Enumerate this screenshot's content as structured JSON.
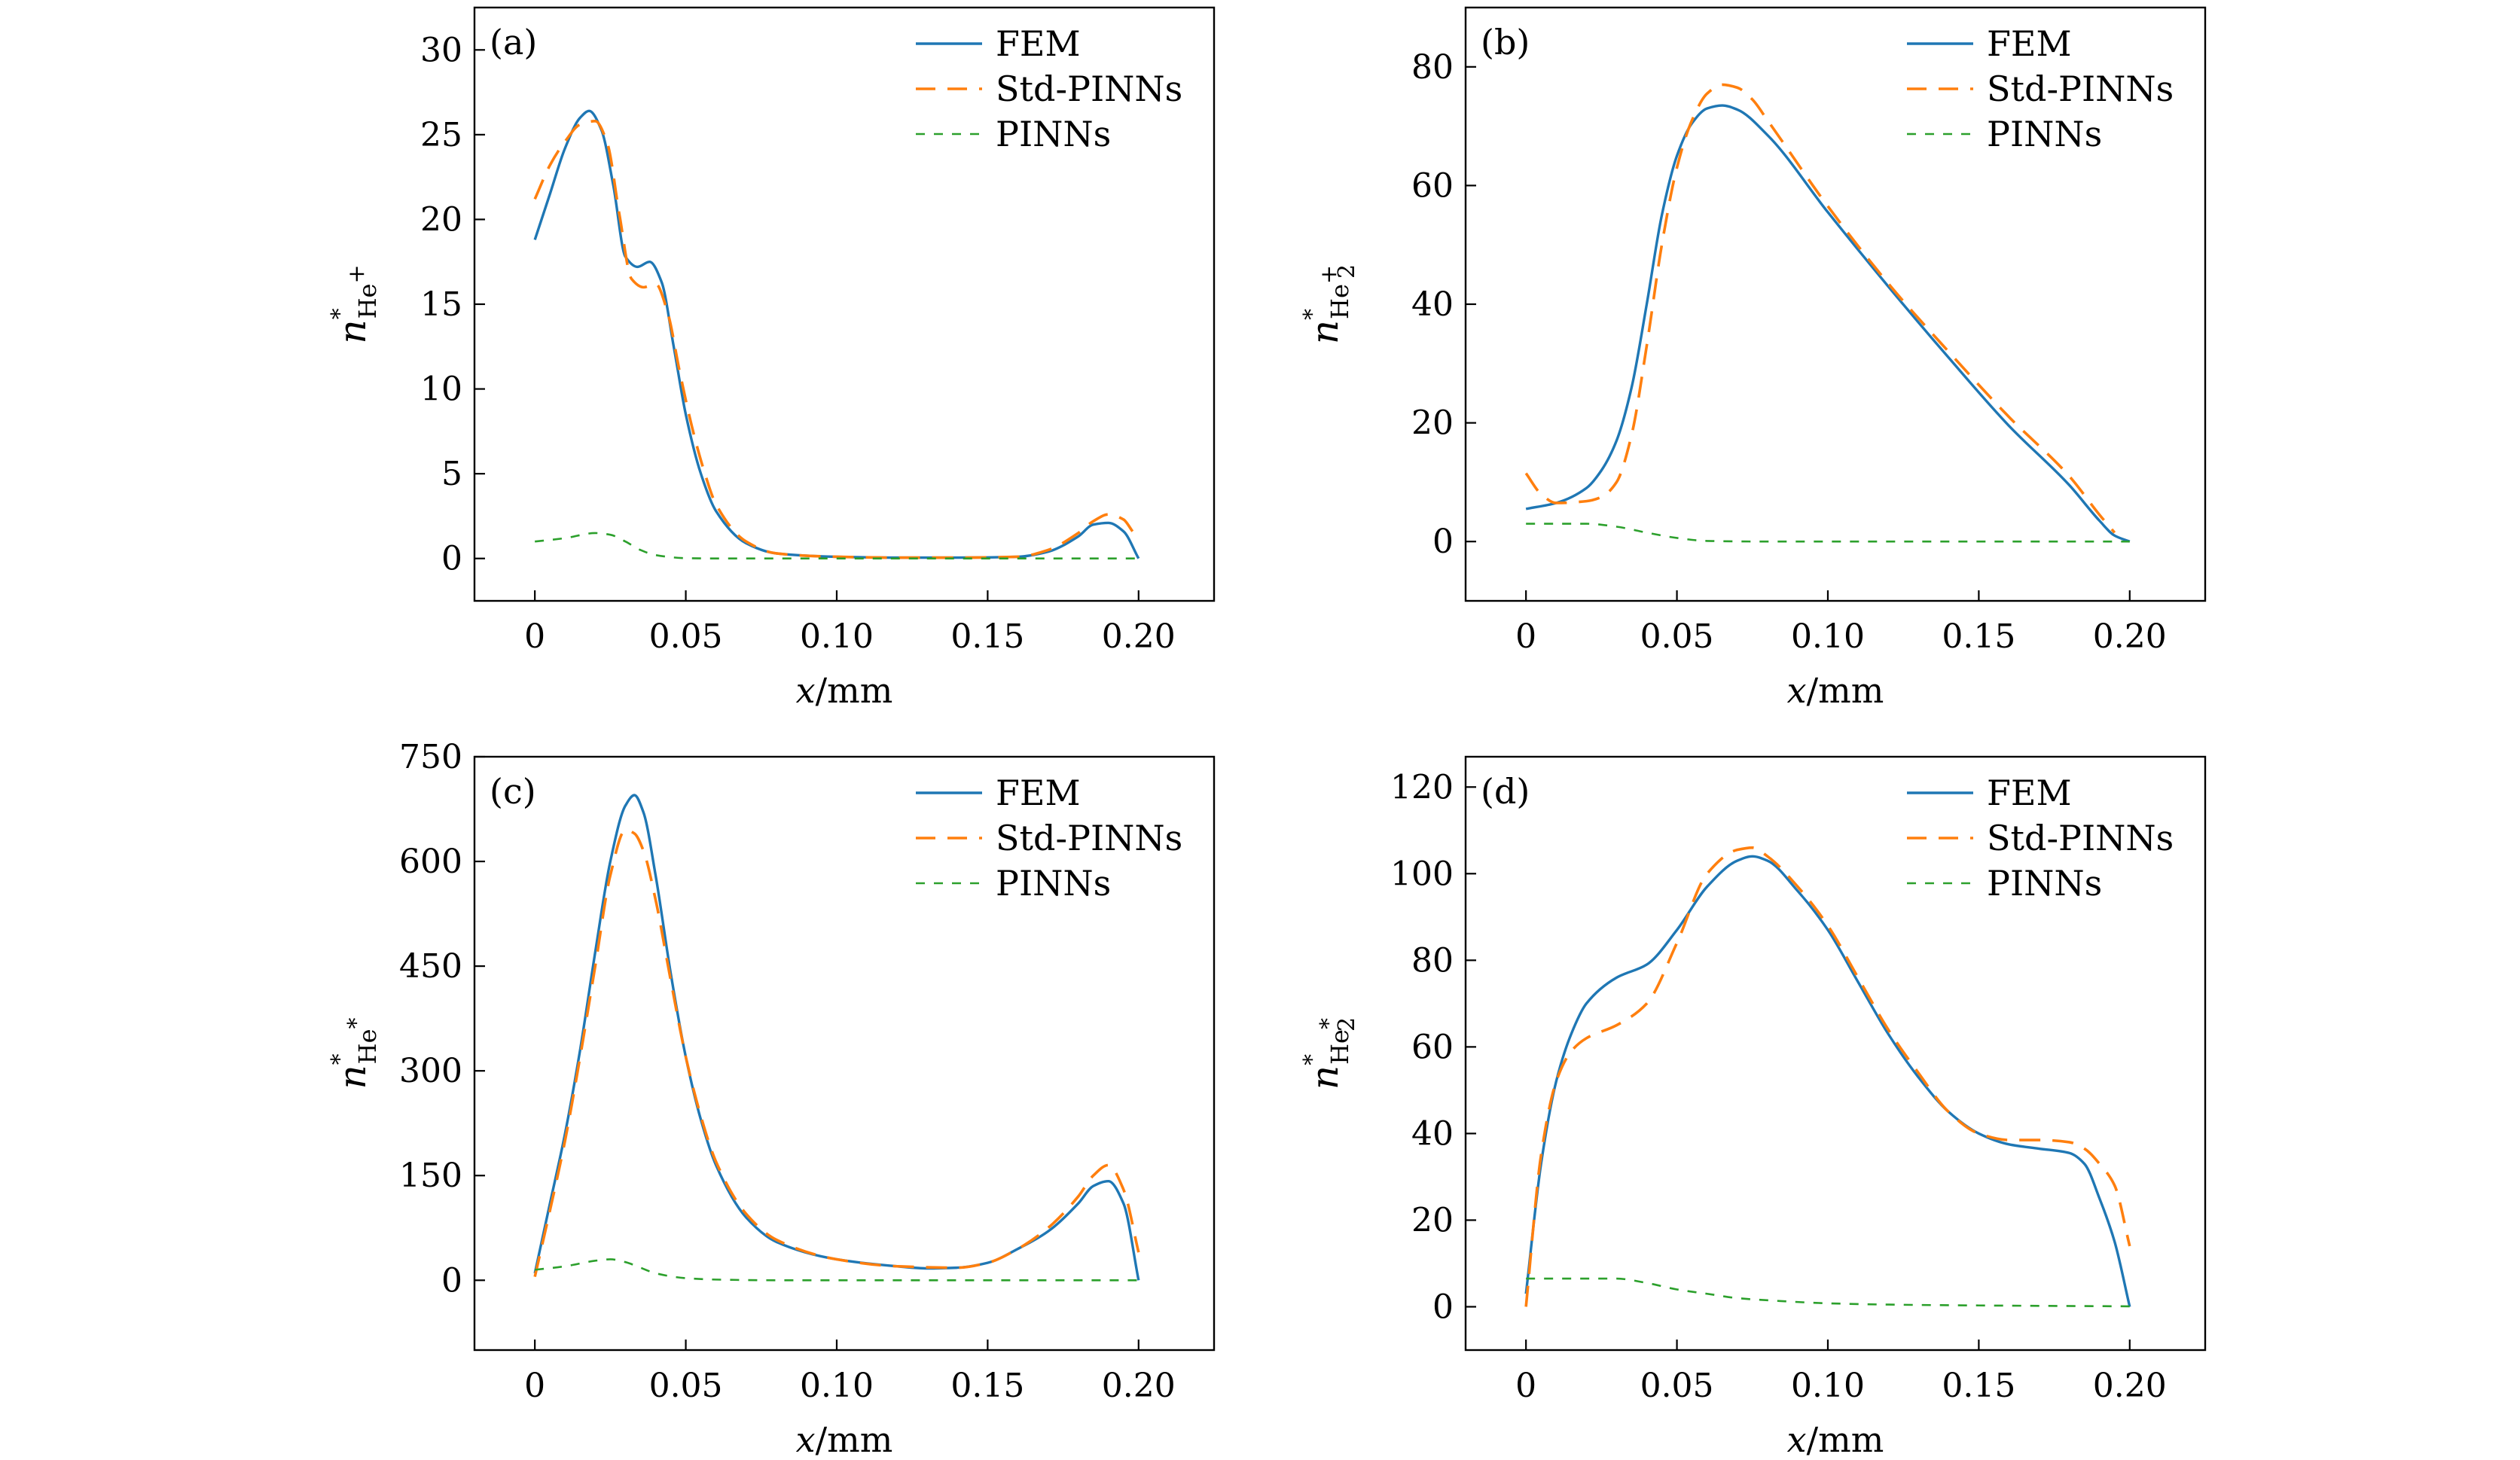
{
  "chart_data": [
    {
      "type": "line",
      "panel_label": "(a)",
      "xlabel": {
        "var": "x",
        "unit": "/mm"
      },
      "ylabel": {
        "main": "n",
        "sup": "*",
        "sub": "He",
        "subsup": "+",
        "subsub": ""
      },
      "xlim": [
        -0.02,
        0.225
      ],
      "ylim": [
        -2.5,
        32.5
      ],
      "xticks": [
        0,
        0.05,
        0.1,
        0.15,
        0.2
      ],
      "xtick_labels": [
        "0",
        "0.05",
        "0.10",
        "0.15",
        "0.20"
      ],
      "yticks": [
        0,
        5,
        10,
        15,
        20,
        25,
        30
      ],
      "ytick_labels": [
        "0",
        "5",
        "10",
        "15",
        "20",
        "25",
        "30"
      ],
      "legend": [
        "FEM",
        "Std-PINNs",
        "PINNs"
      ],
      "legend_position": "top-right",
      "series": [
        {
          "name": "FEM",
          "x": [
            0,
            0.005,
            0.01,
            0.015,
            0.018,
            0.022,
            0.026,
            0.03,
            0.034,
            0.038,
            0.042,
            0.046,
            0.05,
            0.055,
            0.06,
            0.07,
            0.08,
            0.1,
            0.12,
            0.14,
            0.16,
            0.17,
            0.18,
            0.185,
            0.19,
            0.195,
            0.2
          ],
          "values": [
            18.8,
            21.5,
            24.2,
            26.0,
            26.4,
            25.3,
            22.0,
            17.8,
            17.2,
            17.5,
            16.3,
            12.5,
            8.5,
            5.0,
            2.8,
            0.9,
            0.3,
            0.1,
            0.05,
            0.05,
            0.1,
            0.4,
            1.3,
            2.0,
            2.1,
            1.6,
            0.0
          ]
        },
        {
          "name": "Std-PINNs",
          "x": [
            0,
            0.005,
            0.01,
            0.015,
            0.02,
            0.024,
            0.028,
            0.032,
            0.036,
            0.04,
            0.044,
            0.048,
            0.052,
            0.056,
            0.06,
            0.07,
            0.08,
            0.1,
            0.12,
            0.14,
            0.16,
            0.17,
            0.18,
            0.185,
            0.19,
            0.195,
            0.198
          ],
          "values": [
            21.2,
            23.2,
            24.6,
            25.6,
            25.8,
            24.5,
            20.3,
            16.5,
            16.0,
            16.2,
            14.5,
            11.0,
            7.8,
            5.2,
            3.2,
            1.0,
            0.3,
            0.1,
            0.05,
            0.05,
            0.1,
            0.5,
            1.5,
            2.2,
            2.6,
            2.3,
            1.6
          ]
        },
        {
          "name": "PINNs",
          "x": [
            0,
            0.01,
            0.02,
            0.025,
            0.03,
            0.035,
            0.04,
            0.05,
            0.06,
            0.1,
            0.15,
            0.2
          ],
          "values": [
            1.0,
            1.2,
            1.5,
            1.4,
            1.0,
            0.5,
            0.2,
            0.02,
            0.0,
            0.0,
            0.0,
            0.0
          ]
        }
      ]
    },
    {
      "type": "line",
      "panel_label": "(b)",
      "xlabel": {
        "var": "x",
        "unit": "/mm"
      },
      "ylabel": {
        "main": "n",
        "sup": "*",
        "sub": "He",
        "subsup": "+",
        "subsub": "2"
      },
      "xlim": [
        -0.02,
        0.225
      ],
      "ylim": [
        -10,
        90
      ],
      "xticks": [
        0,
        0.05,
        0.1,
        0.15,
        0.2
      ],
      "xtick_labels": [
        "0",
        "0.05",
        "0.10",
        "0.15",
        "0.20"
      ],
      "yticks": [
        0,
        20,
        40,
        60,
        80
      ],
      "ytick_labels": [
        "0",
        "20",
        "40",
        "60",
        "80"
      ],
      "legend": [
        "FEM",
        "Std-PINNs",
        "PINNs"
      ],
      "legend_position": "top-right",
      "series": [
        {
          "name": "FEM",
          "x": [
            0,
            0.01,
            0.02,
            0.025,
            0.03,
            0.035,
            0.04,
            0.045,
            0.05,
            0.055,
            0.06,
            0.065,
            0.07,
            0.08,
            0.1,
            0.12,
            0.14,
            0.16,
            0.18,
            0.19,
            0.195,
            0.2
          ],
          "values": [
            5.5,
            6.5,
            9.0,
            12.0,
            17.0,
            26.0,
            40.0,
            55.0,
            65.0,
            70.5,
            73.0,
            73.5,
            72.8,
            68.5,
            55.5,
            43.0,
            31.0,
            19.5,
            9.5,
            3.5,
            1.0,
            0.0
          ]
        },
        {
          "name": "Std-PINNs",
          "x": [
            0,
            0.005,
            0.01,
            0.02,
            0.025,
            0.03,
            0.035,
            0.04,
            0.045,
            0.05,
            0.055,
            0.06,
            0.065,
            0.07,
            0.075,
            0.08,
            0.1,
            0.12,
            0.14,
            0.16,
            0.18,
            0.19,
            0.195
          ],
          "values": [
            11.5,
            8.0,
            6.5,
            6.8,
            7.5,
            10.0,
            18.0,
            33.0,
            50.0,
            63.0,
            71.0,
            75.5,
            77.0,
            76.5,
            74.5,
            71.0,
            56.5,
            43.5,
            32.0,
            21.0,
            11.0,
            4.5,
            1.5
          ]
        },
        {
          "name": "PINNs",
          "x": [
            0,
            0.01,
            0.02,
            0.03,
            0.04,
            0.05,
            0.06,
            0.08,
            0.1,
            0.15,
            0.2
          ],
          "values": [
            3.0,
            3.0,
            3.0,
            2.5,
            1.5,
            0.6,
            0.1,
            0.0,
            0.0,
            0.0,
            0.0
          ]
        }
      ]
    },
    {
      "type": "line",
      "panel_label": "(c)",
      "xlabel": {
        "var": "x",
        "unit": "/mm"
      },
      "ylabel": {
        "main": "n",
        "sup": "*",
        "sub": "He",
        "subsup": "*",
        "subsub": ""
      },
      "xlim": [
        -0.02,
        0.225
      ],
      "ylim": [
        -100,
        750
      ],
      "xticks": [
        0,
        0.05,
        0.1,
        0.15,
        0.2
      ],
      "xtick_labels": [
        "0",
        "0.05",
        "0.10",
        "0.15",
        "0.20"
      ],
      "yticks": [
        0,
        150,
        300,
        450,
        600,
        750
      ],
      "ytick_labels": [
        "0",
        "150",
        "300",
        "450",
        "600",
        "750"
      ],
      "legend": [
        "FEM",
        "Std-PINNs",
        "PINNs"
      ],
      "legend_position": "top-right",
      "series": [
        {
          "name": "FEM",
          "x": [
            0,
            0.005,
            0.01,
            0.015,
            0.02,
            0.025,
            0.03,
            0.033,
            0.036,
            0.04,
            0.045,
            0.05,
            0.055,
            0.06,
            0.07,
            0.08,
            0.1,
            0.12,
            0.13,
            0.14,
            0.15,
            0.16,
            0.17,
            0.18,
            0.185,
            0.19,
            0.195,
            0.2
          ],
          "values": [
            10,
            110,
            210,
            330,
            470,
            600,
            680,
            695,
            670,
            580,
            440,
            320,
            230,
            165,
            90,
            55,
            30,
            20,
            17,
            18,
            25,
            45,
            70,
            110,
            135,
            142,
            110,
            0
          ]
        },
        {
          "name": "Std-PINNs",
          "x": [
            0,
            0.005,
            0.01,
            0.015,
            0.02,
            0.025,
            0.03,
            0.033,
            0.036,
            0.04,
            0.045,
            0.05,
            0.055,
            0.06,
            0.07,
            0.08,
            0.1,
            0.12,
            0.14,
            0.15,
            0.16,
            0.17,
            0.18,
            0.185,
            0.19,
            0.195,
            0.2
          ],
          "values": [
            5,
            100,
            200,
            320,
            450,
            580,
            645,
            640,
            615,
            545,
            430,
            320,
            235,
            170,
            95,
            58,
            30,
            20,
            18,
            25,
            45,
            75,
            120,
            150,
            165,
            130,
            40
          ]
        },
        {
          "name": "PINNs",
          "x": [
            0,
            0.01,
            0.02,
            0.025,
            0.03,
            0.035,
            0.04,
            0.05,
            0.06,
            0.08,
            0.1,
            0.15,
            0.2
          ],
          "values": [
            15,
            20,
            28,
            30,
            26,
            18,
            10,
            3,
            1,
            0,
            0,
            0,
            0
          ]
        }
      ]
    },
    {
      "type": "line",
      "panel_label": "(d)",
      "xlabel": {
        "var": "x",
        "unit": "/mm"
      },
      "ylabel": {
        "main": "n",
        "sup": "*",
        "sub": "He",
        "subsup": "*",
        "subsub": "2"
      },
      "xlim": [
        -0.02,
        0.225
      ],
      "ylim": [
        -10,
        127
      ],
      "xticks": [
        0,
        0.05,
        0.1,
        0.15,
        0.2
      ],
      "xtick_labels": [
        "0",
        "0.05",
        "0.10",
        "0.15",
        "0.20"
      ],
      "yticks": [
        0,
        20,
        40,
        60,
        80,
        100,
        120
      ],
      "ytick_labels": [
        "0",
        "20",
        "40",
        "60",
        "80",
        "100",
        "120"
      ],
      "legend": [
        "FEM",
        "Std-PINNs",
        "PINNs"
      ],
      "legend_position": "top-right",
      "series": [
        {
          "name": "FEM",
          "x": [
            0,
            0.005,
            0.01,
            0.015,
            0.02,
            0.03,
            0.04,
            0.05,
            0.06,
            0.07,
            0.075,
            0.08,
            0.09,
            0.1,
            0.11,
            0.12,
            0.13,
            0.14,
            0.15,
            0.16,
            0.17,
            0.18,
            0.185,
            0.19,
            0.195,
            0.2
          ],
          "values": [
            3,
            33,
            52,
            63,
            70,
            76,
            79,
            87,
            97,
            103,
            104,
            103,
            96,
            87,
            75,
            63,
            53,
            45,
            40,
            37.5,
            36.5,
            35.5,
            33,
            25,
            15,
            0
          ]
        },
        {
          "name": "Std-PINNs",
          "x": [
            0,
            0.005,
            0.01,
            0.015,
            0.02,
            0.03,
            0.04,
            0.05,
            0.06,
            0.07,
            0.075,
            0.08,
            0.09,
            0.1,
            0.11,
            0.12,
            0.13,
            0.14,
            0.15,
            0.16,
            0.17,
            0.18,
            0.185,
            0.19,
            0.195,
            0.2
          ],
          "values": [
            0,
            35,
            52,
            59,
            62,
            65,
            70,
            84,
            100,
            105.5,
            106,
            104,
            97,
            88,
            76,
            64,
            54,
            45,
            40,
            38.5,
            38.5,
            38,
            36.5,
            33,
            28,
            14
          ]
        },
        {
          "name": "PINNs",
          "x": [
            0,
            0.01,
            0.02,
            0.03,
            0.04,
            0.05,
            0.06,
            0.07,
            0.08,
            0.1,
            0.12,
            0.15,
            0.2
          ],
          "values": [
            6.5,
            6.5,
            6.5,
            6.5,
            5.5,
            4.0,
            3.0,
            2.0,
            1.5,
            0.8,
            0.5,
            0.3,
            0.1
          ]
        }
      ]
    }
  ],
  "colors": {
    "FEM": "#1f77b4",
    "Std-PINNs": "#ff7f0e",
    "PINNs": "#2ca02c",
    "axes": "#000000"
  }
}
